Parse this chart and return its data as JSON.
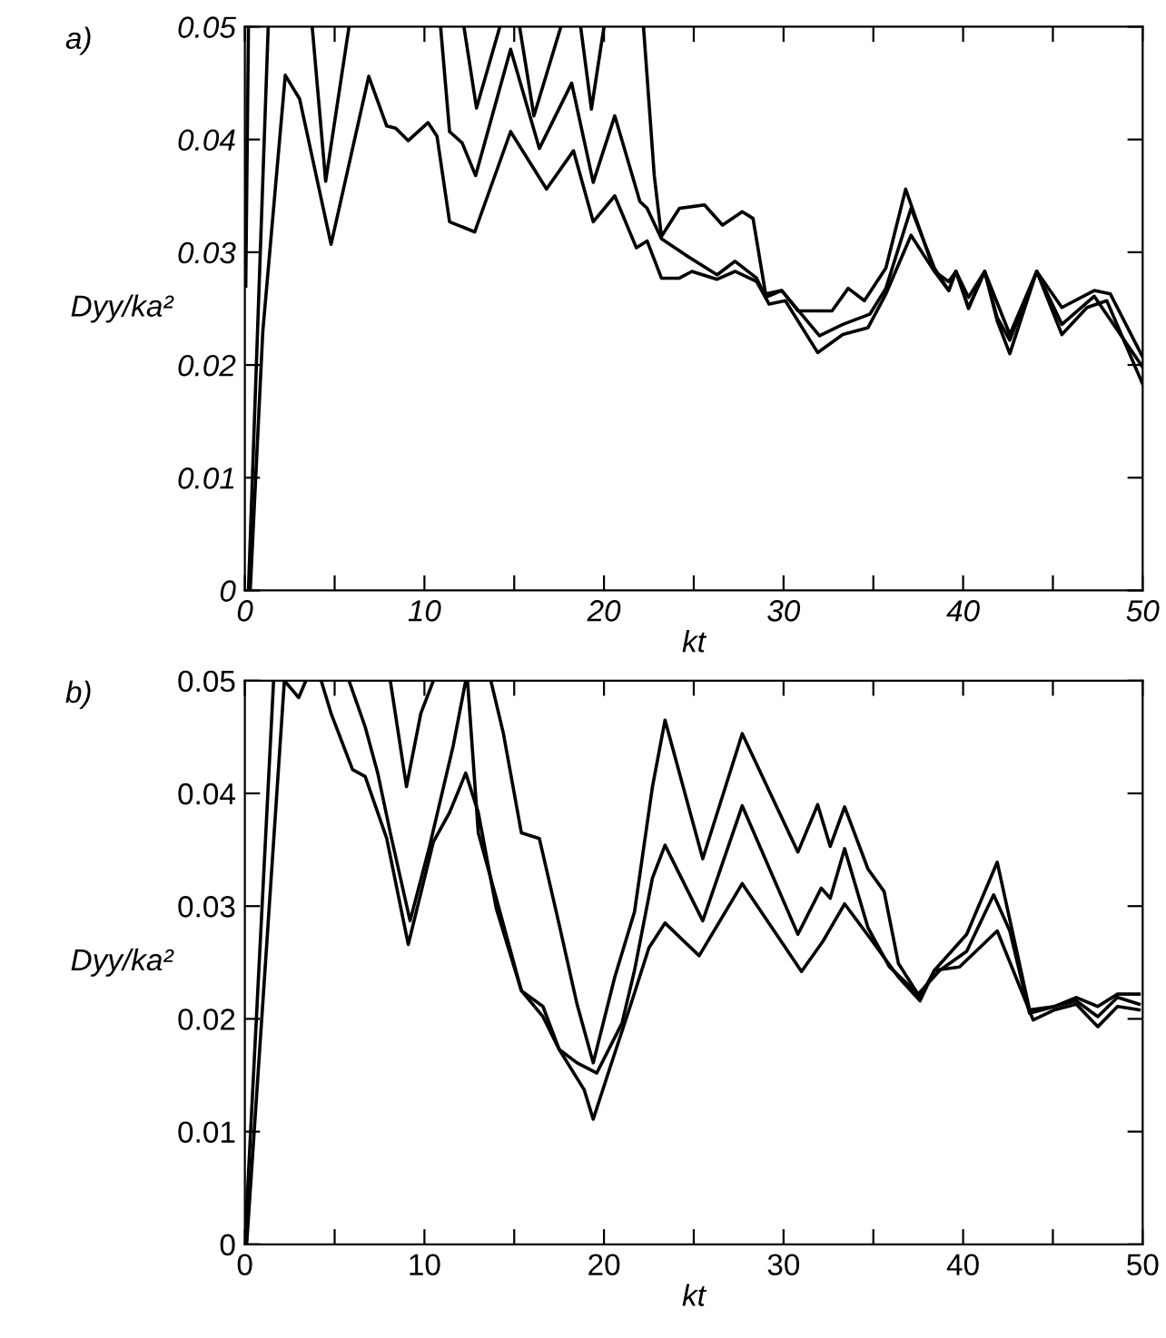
{
  "chart_data": [
    {
      "type": "line",
      "xlabel": "kt",
      "ylabel": "Dyy/ka²",
      "annotations": [
        "a)"
      ],
      "xlim": [
        0,
        50
      ],
      "ylim": [
        0,
        0.05
      ],
      "xticks": [
        0,
        {
          "value": 5,
          "label": null
        },
        10,
        {
          "value": 15,
          "label": null
        },
        20,
        {
          "value": 25,
          "label": null
        },
        30,
        {
          "value": 35,
          "label": null
        },
        40,
        {
          "value": 45,
          "label": null
        },
        50
      ],
      "yticks": [
        0,
        0.01,
        0.02,
        0.03,
        0.04,
        0.05
      ],
      "marker": "none",
      "line_style": "solid",
      "series": [
        {
          "color": "#000000",
          "x": [
            0.3,
            1.0,
            2.25,
            3.05,
            4.8,
            6.9,
            7.9,
            8.4,
            9.1,
            10.2,
            10.7,
            11.4,
            12.8,
            14.8,
            16.8,
            18.3,
            19.4,
            20.6,
            21.8,
            22.4,
            23.2,
            24.2,
            24.9,
            26.3,
            27.3,
            28.5,
            29.2,
            30.1,
            31.9,
            33.3,
            34.7,
            35.7,
            37.1,
            38.4,
            39.2,
            39.6,
            40.3,
            41.2,
            41.9,
            42.6,
            44.1,
            45.5,
            46.9,
            48.0,
            50
          ],
          "values": [
            0,
            0.023,
            0.0457,
            0.0436,
            0.0307,
            0.0456,
            0.0412,
            0.041,
            0.0399,
            0.0415,
            0.0403,
            0.0327,
            0.0318,
            0.0407,
            0.0356,
            0.039,
            0.0327,
            0.035,
            0.0304,
            0.031,
            0.0277,
            0.0277,
            0.0283,
            0.0276,
            0.0283,
            0.0274,
            0.0254,
            0.0257,
            0.0211,
            0.0227,
            0.0233,
            0.0263,
            0.0315,
            0.0283,
            0.0266,
            0.0283,
            0.025,
            0.0283,
            0.0239,
            0.021,
            0.0283,
            0.0227,
            0.0251,
            0.0257,
            0.0183
          ]
        },
        {
          "color": "#000000",
          "x": [
            0.2,
            1.3,
            2.0,
            3.75,
            4.5,
            5.8,
            8.0,
            10.9,
            11.4,
            12.1,
            12.85,
            14.8,
            16.4,
            18.2,
            19.4,
            20.6,
            22.0,
            22.4,
            23.2,
            24.5,
            26.3,
            27.3,
            28.5,
            29.0,
            29.9,
            32.0,
            33.3,
            34.8,
            35.7,
            37.1,
            38.4,
            39.2,
            39.6,
            40.3,
            41.2,
            41.9,
            42.6,
            44.1,
            45.5,
            47.3,
            50
          ],
          "values": [
            0,
            0.05,
            null,
            0.05,
            0.0363,
            0.05,
            null,
            0.05,
            0.0407,
            0.0397,
            0.0368,
            0.048,
            0.0392,
            0.045,
            0.0362,
            0.0421,
            0.0345,
            0.0339,
            0.0312,
            0.0298,
            0.028,
            0.0292,
            0.0277,
            0.026,
            0.0266,
            0.0226,
            0.0236,
            0.0245,
            0.0268,
            0.0339,
            0.0286,
            0.0266,
            0.0283,
            0.0251,
            0.0283,
            0.0242,
            0.0222,
            0.0283,
            0.0236,
            0.0261,
            0.0198
          ]
        },
        {
          "color": "#000000",
          "x": [
            0.05,
            0.2,
            6.0,
            12.2,
            12.9,
            14.2,
            15.0,
            15.3,
            16.1,
            17.6,
            18.4,
            18.7,
            19.3,
            20.0,
            21.0,
            22.2,
            22.8,
            23.2,
            24.2,
            25.6,
            26.6,
            27.7,
            28.3,
            29.0,
            29.9,
            30.8,
            32.7,
            33.6,
            34.5,
            35.7,
            36.8,
            38.4,
            39.2,
            39.6,
            40.3,
            41.2,
            42.6,
            44.1,
            45.5,
            47.3,
            48.2,
            50
          ],
          "values": [
            0.027,
            0.05,
            null,
            0.05,
            0.0428,
            0.05,
            null,
            0.05,
            0.0421,
            0.05,
            null,
            0.05,
            0.0427,
            0.05,
            null,
            0.05,
            0.0368,
            0.0314,
            0.0339,
            0.0342,
            0.0324,
            0.0336,
            0.033,
            0.0263,
            0.0266,
            0.0248,
            0.0248,
            0.0268,
            0.0257,
            0.0286,
            0.0356,
            0.0283,
            0.0274,
            0.0283,
            0.026,
            0.0283,
            0.0227,
            0.0283,
            0.0251,
            0.0266,
            0.0263,
            0.0207
          ]
        }
      ]
    },
    {
      "type": "line",
      "xlabel": "kt",
      "ylabel": "Dyy/ka²",
      "annotations": [
        "b)"
      ],
      "xlim": [
        0,
        50
      ],
      "ylim": [
        0,
        0.05
      ],
      "xticks": [
        0,
        {
          "value": 5,
          "label": null
        },
        10,
        {
          "value": 15,
          "label": null
        },
        20,
        {
          "value": 25,
          "label": null
        },
        30,
        {
          "value": 35,
          "label": null
        },
        40,
        {
          "value": 45,
          "label": null
        },
        50
      ],
      "yticks": [
        0,
        0.01,
        0.02,
        0.03,
        0.04,
        0.05
      ],
      "marker": "none",
      "line_style": "solid",
      "series": [
        {
          "color": "#000000",
          "x": [
            0.1,
            2.2,
            3.0,
            3.4,
            3.8,
            4.25,
            4.8,
            6.0,
            6.7,
            7.9,
            9.1,
            10.5,
            11.4,
            12.3,
            13.0,
            14.0,
            15.4,
            16.6,
            17.5,
            18.9,
            19.4,
            20.3,
            21.5,
            22.5,
            23.4,
            25.3,
            27.7,
            31.0,
            32.2,
            33.4,
            34.8,
            36.4,
            37.6,
            38.4,
            39.8,
            41.9,
            43.9,
            45.1,
            46.3,
            47.5,
            48.6,
            49.8
          ],
          "values": [
            0,
            0.05,
            0.0485,
            0.05,
            null,
            0.05,
            0.0471,
            0.0421,
            0.0415,
            0.036,
            0.0266,
            0.0357,
            0.0383,
            0.0418,
            0.0383,
            0.0298,
            0.0225,
            0.0202,
            0.0173,
            0.0137,
            0.0111,
            0.0155,
            0.0213,
            0.0263,
            0.0285,
            0.0256,
            0.032,
            0.0242,
            0.0269,
            0.0302,
            0.0272,
            0.0237,
            0.0216,
            0.0243,
            0.0246,
            0.0278,
            0.0199,
            0.0208,
            0.0213,
            0.0193,
            0.0211,
            0.0208
          ]
        },
        {
          "color": "#000000",
          "x": [
            5.8,
            6.7,
            7.4,
            8.1,
            9.2,
            10.3,
            11.6,
            12.3,
            12.35,
            12.4,
            13.0,
            14.0,
            15.4,
            16.6,
            17.5,
            18.5,
            19.6,
            21.0,
            21.7,
            22.7,
            23.4,
            25.5,
            27.7,
            30.8,
            32.1,
            32.6,
            33.4,
            34.7,
            35.9,
            37.5,
            38.7,
            40.2,
            41.7,
            42.6,
            43.7,
            45.1,
            46.3,
            47.5,
            48.6,
            49.8
          ],
          "values": [
            0.05,
            0.0459,
            0.0418,
            0.0365,
            0.0287,
            0.0354,
            0.0442,
            0.05,
            null,
            0.05,
            0.0365,
            0.0307,
            0.0225,
            0.0211,
            0.0173,
            0.0161,
            0.0152,
            0.0196,
            0.0243,
            0.0325,
            0.0354,
            0.0287,
            0.0389,
            0.0275,
            0.0316,
            0.0307,
            0.0351,
            0.0281,
            0.0246,
            0.0222,
            0.0243,
            0.026,
            0.031,
            0.0278,
            0.0205,
            0.0211,
            0.0216,
            0.0202,
            0.0219,
            0.0213
          ]
        },
        {
          "color": "#000000",
          "x": [
            0.0,
            1.6,
            5.0,
            8.1,
            9.0,
            9.8,
            10.5,
            12.0,
            13.7,
            14.4,
            15.4,
            16.4,
            17.5,
            18.5,
            19.4,
            20.6,
            21.7,
            22.7,
            23.4,
            25.5,
            27.7,
            30.8,
            31.9,
            32.6,
            33.4,
            34.7,
            35.6,
            36.4,
            37.6,
            38.4,
            40.2,
            41.9,
            43.7,
            45.1,
            46.3,
            47.5,
            48.6,
            49.8
          ],
          "values": [
            0,
            0.05,
            null,
            0.05,
            0.0406,
            0.0471,
            0.05,
            null,
            0.05,
            0.0453,
            0.0365,
            0.036,
            0.0284,
            0.0213,
            0.0161,
            0.0237,
            0.0295,
            0.0406,
            0.0465,
            0.0342,
            0.0453,
            0.0348,
            0.039,
            0.0353,
            0.0388,
            0.0333,
            0.0313,
            0.0249,
            0.0219,
            0.0243,
            0.0275,
            0.0339,
            0.0208,
            0.0211,
            0.0219,
            0.0211,
            0.0222,
            0.0222
          ]
        }
      ]
    }
  ]
}
